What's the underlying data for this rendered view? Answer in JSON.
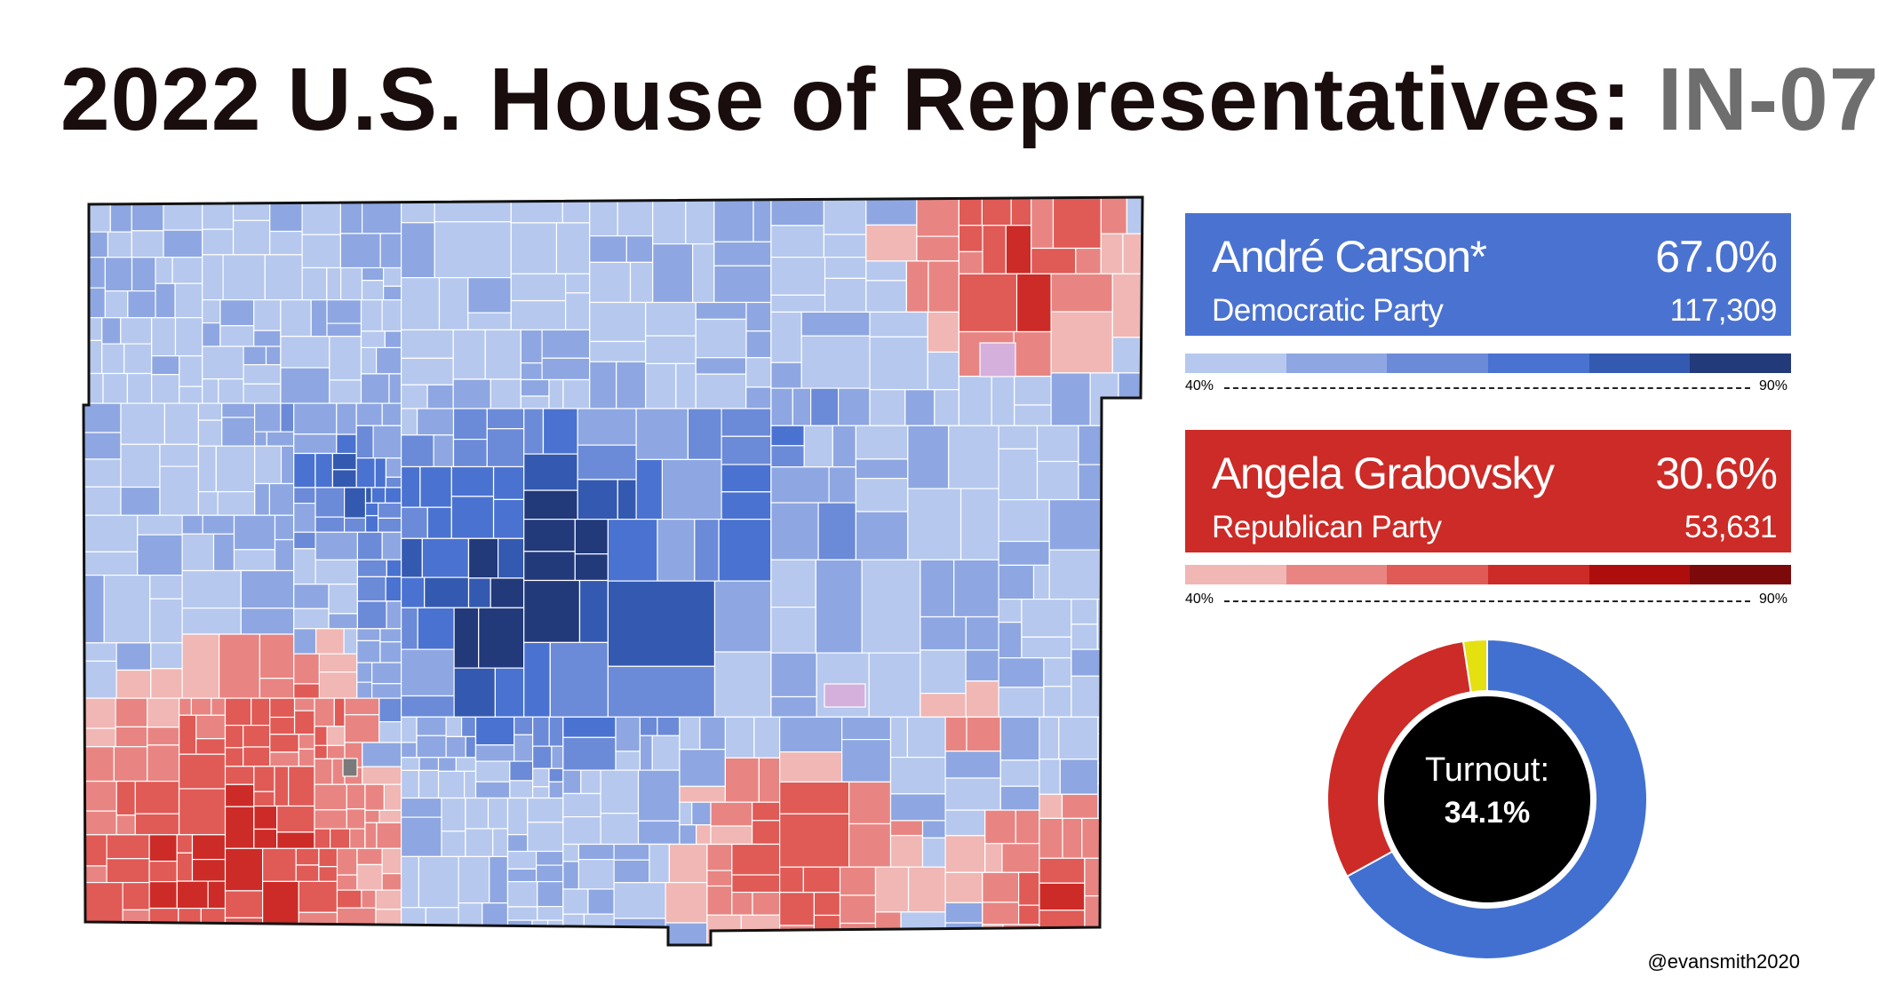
{
  "title": {
    "main": "2022 U.S. House of Representatives: ",
    "district": "IN-07"
  },
  "candidates": [
    {
      "name": "André Carson*",
      "party": "Democratic Party",
      "percent": "67.0%",
      "votes": "117,309",
      "color": "#4a72d0"
    },
    {
      "name": "Angela Grabovsky",
      "party": "Republican Party",
      "percent": "30.6%",
      "votes": "53,631",
      "color": "#cc2b27"
    }
  ],
  "scales": {
    "dem": {
      "low": "40%",
      "high": "90%",
      "colors": [
        "#b6c8ee",
        "#8ea7e2",
        "#6b8ad8",
        "#4a72d0",
        "#3459b0",
        "#22397a"
      ]
    },
    "rep": {
      "low": "40%",
      "high": "90%",
      "colors": [
        "#f0b7b5",
        "#e88582",
        "#e05a56",
        "#cc2b27",
        "#ad0d0d",
        "#7d0a0a"
      ]
    }
  },
  "turnout": {
    "label": "Turnout:",
    "value": "34.1%",
    "shares": [
      {
        "party": "Democratic",
        "share": 67.0,
        "color": "#4270d0"
      },
      {
        "party": "Republican",
        "share": 30.6,
        "color": "#cc2b27"
      },
      {
        "party": "Other",
        "share": 2.4,
        "color": "#e5e010"
      }
    ]
  },
  "map": {
    "outline_color": "#111111",
    "precinct_stroke": "#ffffff",
    "palette": {
      "dem": [
        "#b6c8ee",
        "#8ea7e2",
        "#6b8ad8",
        "#4a72d0",
        "#3459b0",
        "#22397a"
      ],
      "rep": [
        "#f0b7b5",
        "#e88582",
        "#e05a56",
        "#cc2b27"
      ],
      "tie": "#d6b0dc",
      "nodata": "#7a7a7a"
    }
  },
  "credit": "@evansmith2020"
}
